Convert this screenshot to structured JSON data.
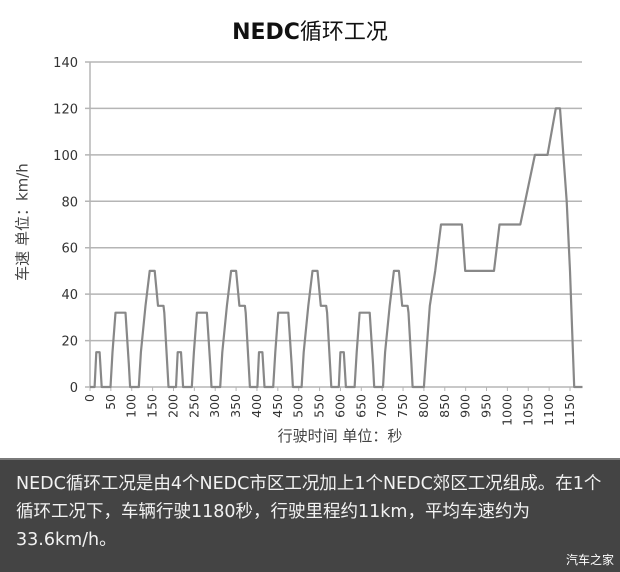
{
  "title": {
    "latin": "NEDC",
    "cn": "循环工况"
  },
  "ylabel": "车速 单位：km/h",
  "xlabel": "行驶时间 单位：秒",
  "caption": {
    "text": "NEDC循环工况是由4个NEDC市区工况加上1个NEDC郊区工况组成。在1个循环工况下，车辆行驶1180秒，行驶里程约11km，平均车速约为33.6km/h。",
    "watermark": "汽车之家"
  },
  "colors": {
    "line": "#888888",
    "grid": "#b5b5b5",
    "caption_bg": "#444444"
  },
  "chart_data": {
    "type": "line",
    "title": "NEDC循环工况",
    "xlabel": "行驶时间 单位：秒",
    "ylabel": "车速 单位：km/h",
    "ylim": [
      0,
      140
    ],
    "xlim": [
      0,
      1180
    ],
    "yticks": [
      0,
      20,
      40,
      60,
      80,
      100,
      120,
      140
    ],
    "xticks": [
      0,
      50,
      100,
      150,
      200,
      250,
      300,
      350,
      400,
      450,
      500,
      550,
      600,
      650,
      700,
      750,
      800,
      850,
      900,
      950,
      1000,
      1050,
      1100,
      1150
    ],
    "grid": "horizontal",
    "legend": "none",
    "series": [
      {
        "name": "车速",
        "x": [
          0,
          11,
          15,
          23,
          28,
          49,
          54,
          61,
          85,
          93,
          96,
          117,
          122,
          133,
          143,
          155,
          163,
          176,
          178,
          185,
          188,
          195,
          206,
          210,
          218,
          223,
          244,
          249,
          256,
          280,
          288,
          291,
          312,
          317,
          328,
          338,
          350,
          358,
          371,
          373,
          380,
          383,
          390,
          401,
          405,
          413,
          418,
          439,
          444,
          451,
          475,
          483,
          486,
          507,
          512,
          523,
          533,
          545,
          553,
          566,
          568,
          575,
          578,
          585,
          596,
          600,
          608,
          613,
          634,
          639,
          646,
          670,
          678,
          681,
          702,
          707,
          718,
          728,
          740,
          748,
          761,
          763,
          770,
          773,
          780,
          800,
          806,
          814,
          827,
          841,
          891,
          899,
          968,
          981,
          1031,
          1066,
          1096,
          1116,
          1126,
          1142,
          1150,
          1160,
          1180
        ],
        "y": [
          0,
          0,
          15,
          15,
          0,
          0,
          15,
          32,
          32,
          10,
          0,
          0,
          15,
          35,
          50,
          50,
          35,
          35,
          32,
          10,
          0,
          0,
          0,
          15,
          15,
          0,
          0,
          15,
          32,
          32,
          10,
          0,
          0,
          15,
          35,
          50,
          50,
          35,
          35,
          32,
          10,
          0,
          0,
          0,
          15,
          15,
          0,
          0,
          15,
          32,
          32,
          10,
          0,
          0,
          15,
          35,
          50,
          50,
          35,
          35,
          32,
          10,
          0,
          0,
          0,
          15,
          15,
          0,
          0,
          15,
          32,
          32,
          10,
          0,
          0,
          15,
          35,
          50,
          50,
          35,
          35,
          32,
          10,
          0,
          0,
          0,
          15,
          35,
          50,
          70,
          70,
          50,
          50,
          70,
          70,
          100,
          100,
          120,
          120,
          80,
          50,
          0,
          0
        ]
      }
    ]
  }
}
